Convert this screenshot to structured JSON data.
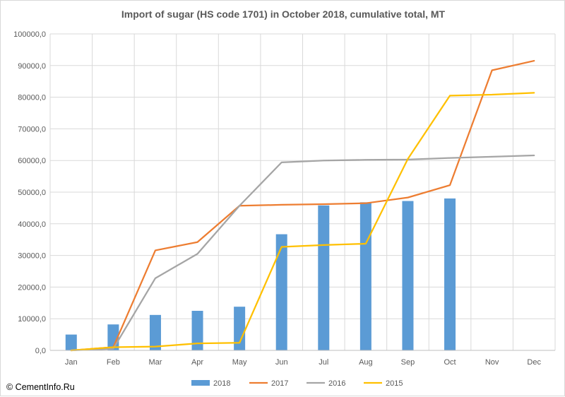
{
  "chart_data": {
    "type": "bar",
    "title": "Import of sugar (HS code 1701) in October 2018, cumulative total, MT",
    "categories": [
      "Jan",
      "Feb",
      "Mar",
      "Apr",
      "May",
      "Jun",
      "Jul",
      "Aug",
      "Sep",
      "Oct",
      "Nov",
      "Dec"
    ],
    "ylim": [
      0,
      100000
    ],
    "yticks": [
      "0,0",
      "10000,0",
      "20000,0",
      "30000,0",
      "40000,0",
      "50000,0",
      "60000,0",
      "70000,0",
      "80000,0",
      "90000,0",
      "100000,0"
    ],
    "grid": "both",
    "legend_position": "bottom",
    "series": [
      {
        "name": "2018",
        "kind": "bar",
        "color": "#5b9bd5",
        "values": [
          5000,
          8200,
          11200,
          12500,
          13800,
          36700,
          45800,
          46800,
          47200,
          48000,
          null,
          null
        ]
      },
      {
        "name": "2017",
        "kind": "line",
        "color": "#ed7d31",
        "values": [
          0,
          1000,
          31600,
          34200,
          45700,
          46000,
          46200,
          46500,
          48300,
          52200,
          88500,
          91500
        ]
      },
      {
        "name": "2016",
        "kind": "line",
        "color": "#a5a5a5",
        "values": [
          0,
          500,
          22800,
          30500,
          45700,
          59400,
          60000,
          60200,
          60300,
          60800,
          61200,
          61600
        ]
      },
      {
        "name": "2015",
        "kind": "line",
        "color": "#ffc000",
        "values": [
          0,
          1000,
          1200,
          2200,
          2400,
          32700,
          33300,
          33700,
          60500,
          80500,
          80800,
          81400
        ]
      }
    ]
  },
  "credit": "© CementInfo.Ru"
}
